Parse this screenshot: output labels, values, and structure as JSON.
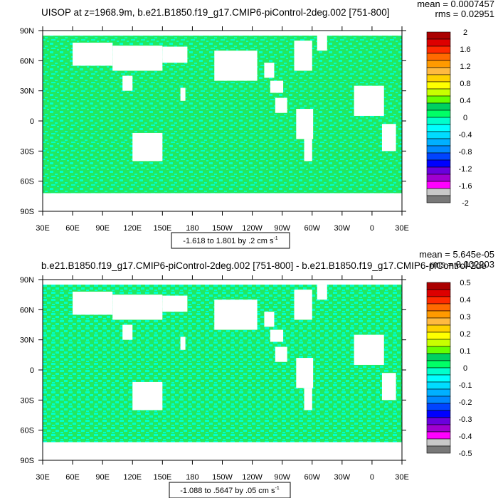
{
  "panels": [
    {
      "title": "UISOP at z=1968.9m, b.e21.B1850.f19_g17.CMIP6-piControl-2deg.002 [751-800]",
      "stats": {
        "mean": "mean = 0.0007457",
        "rms": "rms = 0.02951"
      },
      "range_label": "-1.618 to 1.801 by .2 cm s",
      "range_sup": "-1",
      "colorbar_labels": [
        "2",
        "1.6",
        "1.2",
        "0.8",
        "0.4",
        "0",
        "-0.4",
        "-0.8",
        "-1.2",
        "-1.6",
        "-2"
      ],
      "colorbar_colors": [
        "#aa0000",
        "#dd0000",
        "#ff2a00",
        "#ff6a00",
        "#ff9a00",
        "#ffba40",
        "#ffd200",
        "#ffff00",
        "#c8ff00",
        "#66ff00",
        "#00d060",
        "#00ff66",
        "#00ffcc",
        "#00ffff",
        "#00dcff",
        "#00b0ff",
        "#0088ff",
        "#0044ff",
        "#0000ff",
        "#6a00dd",
        "#a000d0",
        "#ff00ff",
        "#c8c8c8",
        "#787878"
      ]
    },
    {
      "title": "b.e21.B1850.f19_g17.CMIP6-piControl-2deg.002 [751-800] - b.e21.B1850.f19_g17.CMIP6-piControl-2de",
      "stats": {
        "mean": "mean = 5.645e-05",
        "rms": "rms = 0.002203"
      },
      "range_label": "-1.088 to .5647 by .05 cm s",
      "range_sup": "-1",
      "colorbar_labels": [
        "0.5",
        "0.4",
        "0.3",
        "0.2",
        "0.1",
        "0",
        "-0.1",
        "-0.2",
        "-0.3",
        "-0.4",
        "-0.5"
      ],
      "colorbar_colors": [
        "#aa0000",
        "#dd0000",
        "#ff2a00",
        "#ff6a00",
        "#ff9a00",
        "#ffba40",
        "#ffd200",
        "#ffff00",
        "#c8ff00",
        "#66ff00",
        "#00d060",
        "#00ff66",
        "#00ffcc",
        "#00ffff",
        "#00dcff",
        "#00b0ff",
        "#0088ff",
        "#0044ff",
        "#0000ff",
        "#6a00dd",
        "#a000d0",
        "#ff00ff",
        "#c8c8c8",
        "#787878"
      ]
    }
  ],
  "lat_ticks": [
    "90N",
    "60N",
    "30N",
    "0",
    "30S",
    "60S",
    "90S"
  ],
  "lon_ticks": [
    "30E",
    "60E",
    "90E",
    "120E",
    "150E",
    "180",
    "150W",
    "120W",
    "90W",
    "60W",
    "30W",
    "0",
    "30E"
  ],
  "colors": {
    "ocean_green": "#22e860",
    "ocean_cyan": "#00ffcc",
    "land": "#ffffff"
  },
  "chart_data": [
    {
      "type": "heatmap",
      "title": "UISOP at z=1968.9m, b.e21.B1850.f19_g17.CMIP6-piControl-2deg.002 [751-800]",
      "x_ticks": [
        "30E",
        "60E",
        "90E",
        "120E",
        "150E",
        "180",
        "150W",
        "120W",
        "90W",
        "60W",
        "30W",
        "0",
        "30E"
      ],
      "y_ticks": [
        "90N",
        "60N",
        "30N",
        "0",
        "30S",
        "60S",
        "90S"
      ],
      "colorbar_levels": [
        2,
        1.6,
        1.2,
        0.8,
        0.4,
        0,
        -0.4,
        -0.8,
        -1.2,
        -1.6,
        -2
      ],
      "mean": 0.0007457,
      "rms": 0.02951,
      "data_min": -1.618,
      "data_max": 1.801,
      "interval": 0.2,
      "units": "cm s-1"
    },
    {
      "type": "heatmap",
      "title": "b.e21.B1850.f19_g17.CMIP6-piControl-2deg.002 [751-800] - b.e21.B1850.f19_g17.CMIP6-piControl-2de",
      "x_ticks": [
        "30E",
        "60E",
        "90E",
        "120E",
        "150E",
        "180",
        "150W",
        "120W",
        "90W",
        "60W",
        "30W",
        "0",
        "30E"
      ],
      "y_ticks": [
        "90N",
        "60N",
        "30N",
        "0",
        "30S",
        "60S",
        "90S"
      ],
      "colorbar_levels": [
        0.5,
        0.4,
        0.3,
        0.2,
        0.1,
        0,
        -0.1,
        -0.2,
        -0.3,
        -0.4,
        -0.5
      ],
      "mean": 5.645e-05,
      "rms": 0.002203,
      "data_min": -1.088,
      "data_max": 0.5647,
      "interval": 0.05,
      "units": "cm s-1"
    }
  ]
}
